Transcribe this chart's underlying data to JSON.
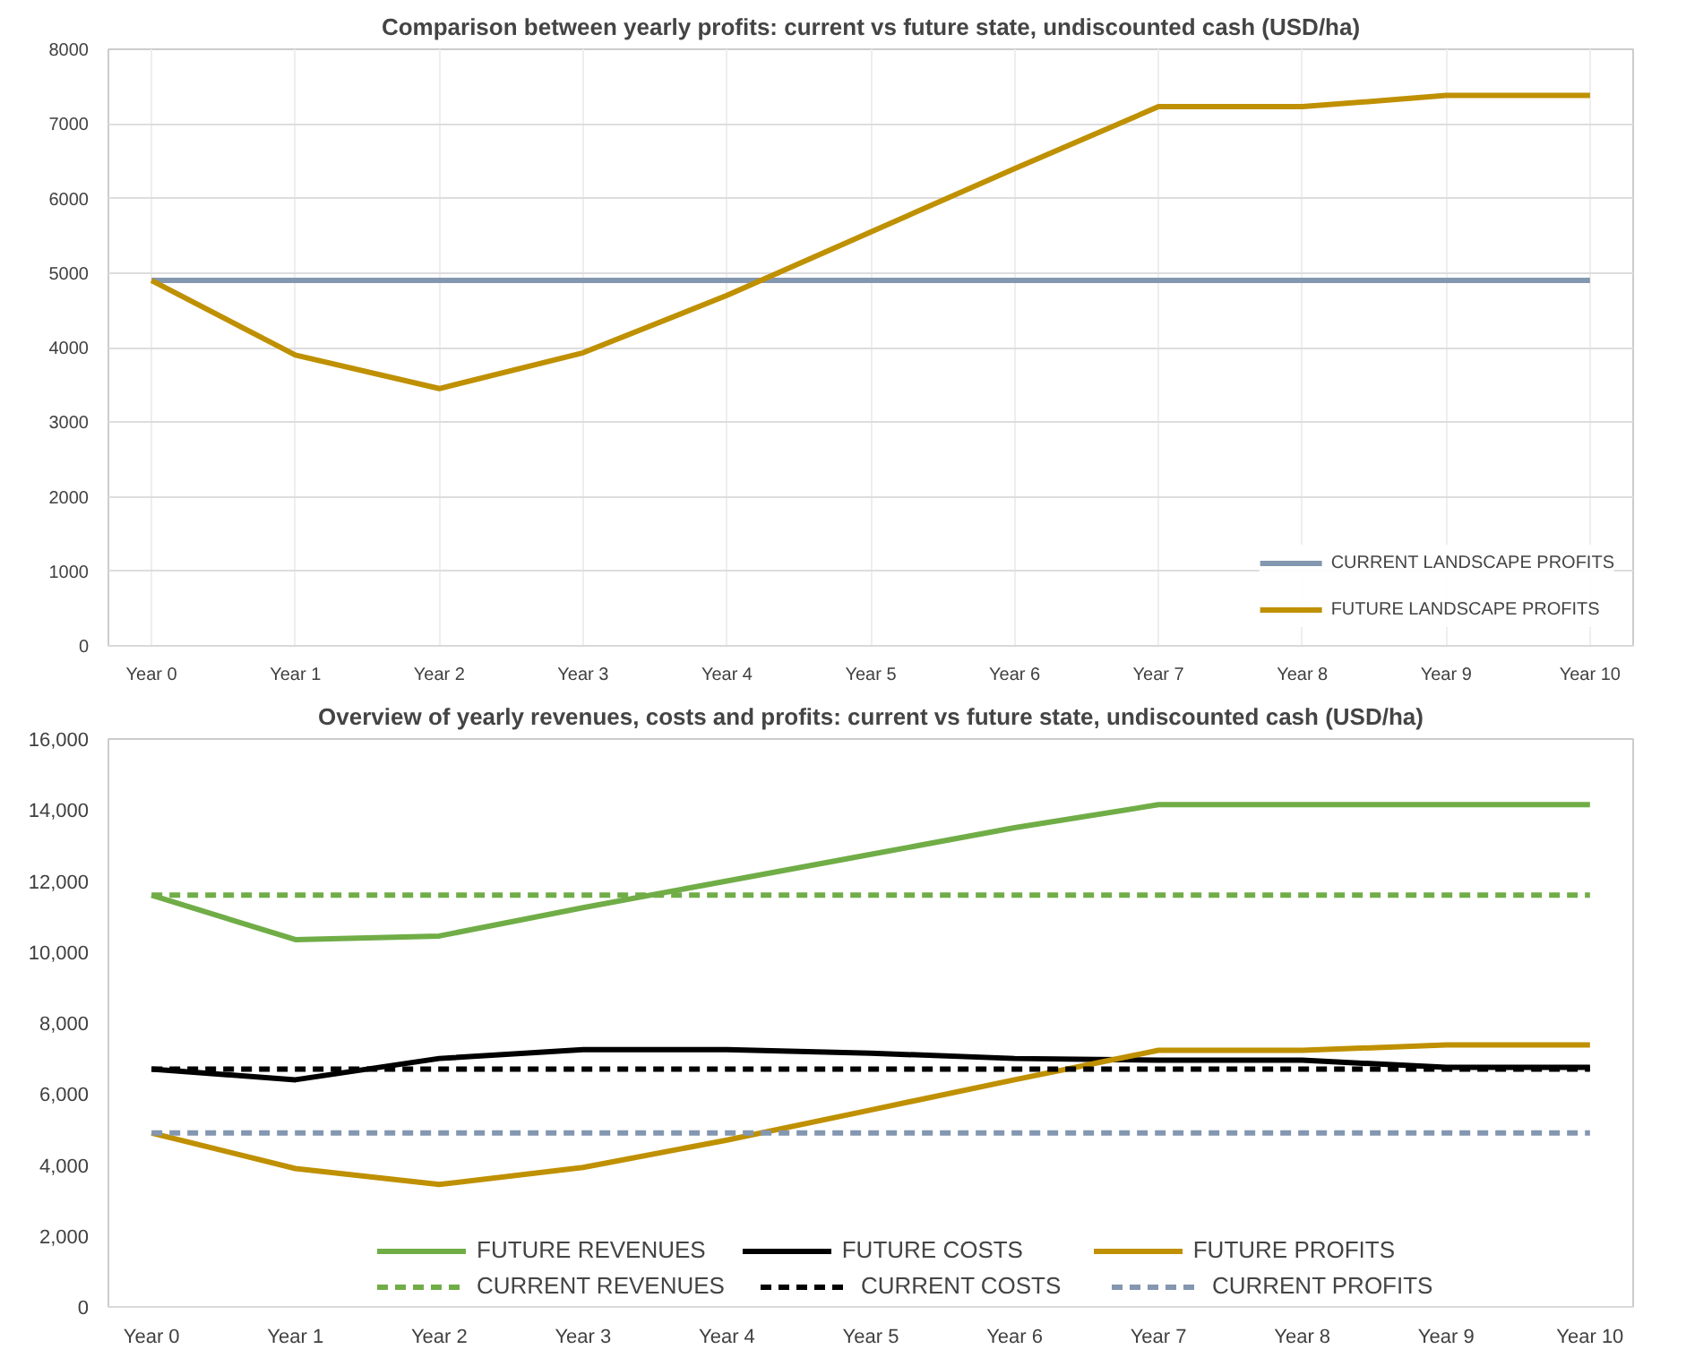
{
  "chart_data": [
    {
      "type": "line",
      "title": "Comparison between yearly profits: current vs future state, undiscounted cash (USD/ha)",
      "categories": [
        "Year 0",
        "Year 1",
        "Year 2",
        "Year 3",
        "Year 4",
        "Year 5",
        "Year 6",
        "Year 7",
        "Year 8",
        "Year 9",
        "Year 10"
      ],
      "ylim": [
        0,
        8000
      ],
      "yticks": [
        0,
        1000,
        2000,
        3000,
        4000,
        5000,
        6000,
        7000,
        8000
      ],
      "grid": true,
      "legend": "bottom right",
      "marker": "none",
      "series": [
        {
          "name": "CURRENT LANDSCAPE PROFITS",
          "color": "#8497b0",
          "line_style": "solid",
          "values": [
            4900,
            4900,
            4900,
            4900,
            4900,
            4900,
            4900,
            4900,
            4900,
            4900,
            4900
          ]
        },
        {
          "name": "FUTURE LANDSCAPE PROFITS",
          "color": "#bf9000",
          "line_style": "solid",
          "values": [
            4900,
            3900,
            3450,
            3930,
            4700,
            5550,
            6400,
            7230,
            7230,
            7380,
            7380
          ]
        }
      ]
    },
    {
      "type": "line",
      "title": "Overview of yearly revenues, costs and profits: current vs future state, undiscounted cash (USD/ha)",
      "categories": [
        "Year 0",
        "Year 1",
        "Year 2",
        "Year 3",
        "Year 4",
        "Year 5",
        "Year 6",
        "Year 7",
        "Year 8",
        "Year 9",
        "Year 10"
      ],
      "ylim": [
        0,
        16000
      ],
      "yticks": [
        0,
        {
          "value": 2000,
          "label": "2,000"
        },
        {
          "value": 4000,
          "label": "4,000"
        },
        {
          "value": 6000,
          "label": "6,000"
        },
        {
          "value": 8000,
          "label": "8,000"
        },
        {
          "value": 10000,
          "label": "10,000"
        },
        {
          "value": 12000,
          "label": "12,000"
        },
        {
          "value": 14000,
          "label": "14,000"
        },
        {
          "value": 16000,
          "label": "16,000"
        }
      ],
      "grid": false,
      "legend": "bottom",
      "marker": "none",
      "series": [
        {
          "name": "FUTURE REVENUES",
          "color": "#70ad47",
          "line_style": "solid",
          "values": [
            11600,
            10350,
            10450,
            11250,
            12000,
            12750,
            13500,
            14150,
            14150,
            14150,
            14150
          ]
        },
        {
          "name": "FUTURE COSTS",
          "color": "#000000",
          "line_style": "solid",
          "values": [
            6700,
            6400,
            7000,
            7250,
            7250,
            7150,
            7000,
            6950,
            6950,
            6750,
            6750
          ]
        },
        {
          "name": "FUTURE PROFITS",
          "color": "#bf9000",
          "line_style": "solid",
          "values": [
            4900,
            3900,
            3450,
            3930,
            4700,
            5550,
            6400,
            7230,
            7230,
            7380,
            7380
          ]
        },
        {
          "name": "CURRENT REVENUES",
          "color": "#70ad47",
          "line_style": "dashed",
          "values": [
            11600,
            11600,
            11600,
            11600,
            11600,
            11600,
            11600,
            11600,
            11600,
            11600,
            11600
          ]
        },
        {
          "name": "CURRENT COSTS",
          "color": "#000000",
          "line_style": "dashed",
          "values": [
            6700,
            6700,
            6700,
            6700,
            6700,
            6700,
            6700,
            6700,
            6700,
            6700,
            6700
          ]
        },
        {
          "name": "CURRENT PROFITS",
          "color": "#8497b0",
          "line_style": "dashed",
          "values": [
            4900,
            4900,
            4900,
            4900,
            4900,
            4900,
            4900,
            4900,
            4900,
            4900,
            4900
          ]
        }
      ]
    }
  ]
}
